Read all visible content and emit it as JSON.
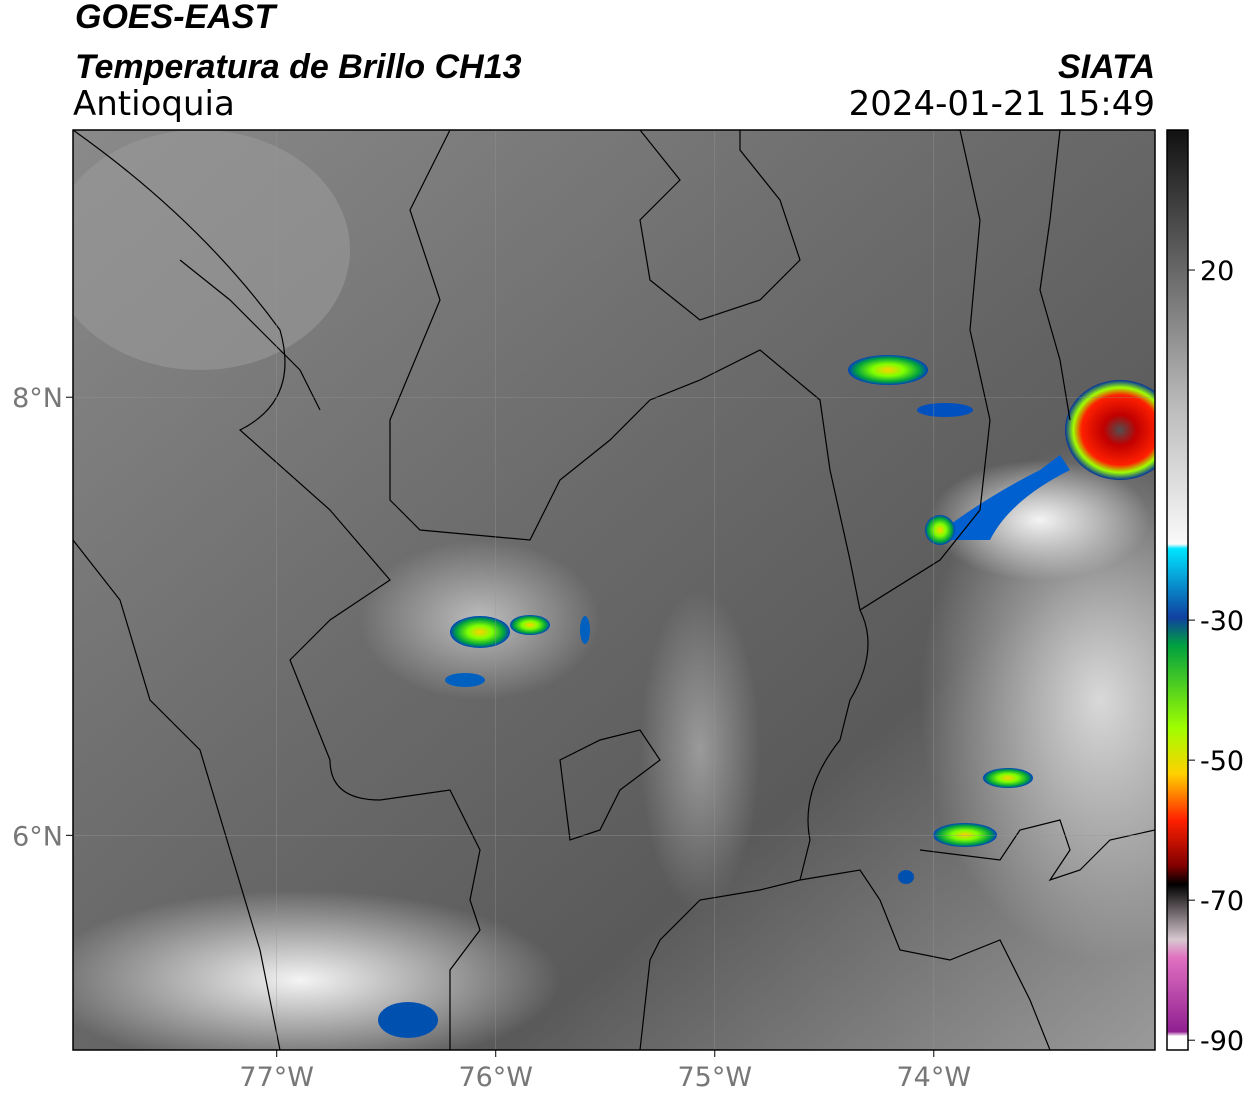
{
  "header": {
    "satellite": "GOES-EAST",
    "product": "Temperatura de Brillo CH13",
    "region": "Antioquia",
    "source": "SIATA",
    "timestamp": "2024-01-21 15:49"
  },
  "map": {
    "xlim": [
      -77.93,
      -72.99
    ],
    "ylim": [
      5.02,
      9.22
    ],
    "xticks": [
      {
        "value": -77,
        "label": "77°W"
      },
      {
        "value": -76,
        "label": "76°W"
      },
      {
        "value": -75,
        "label": "75°W"
      },
      {
        "value": -74,
        "label": "74°W"
      }
    ],
    "yticks": [
      {
        "value": 6,
        "label": "6°N"
      },
      {
        "value": 8,
        "label": "8°N"
      }
    ],
    "grid": true
  },
  "colorbar": {
    "lim": [
      -91.4,
      40
    ],
    "ticks": [
      20,
      -30,
      -50,
      -70,
      -90
    ]
  }
}
